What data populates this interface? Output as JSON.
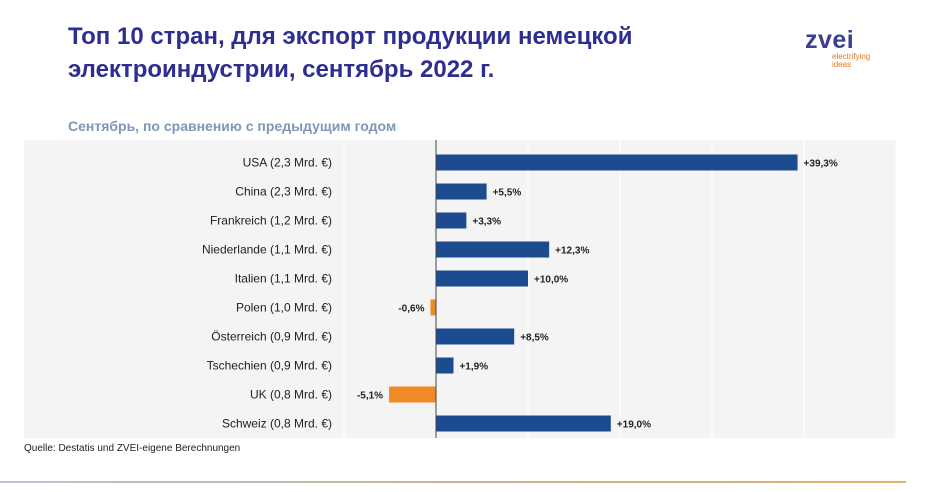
{
  "header": {
    "title": "Топ 10 стран, для экспорт продукции немецкой электроиндустрии, сентябрь 2022 г.",
    "logo_word": "zvei",
    "logo_tagline_1": "electrifying",
    "logo_tagline_2": "ideas"
  },
  "subtitle": "Сентябрь, по сравнению с предыдущим годом",
  "source": "Quelle: Destatis und ZVEI-eigene Berechnungen",
  "colors": {
    "positive": "#1d4b8f",
    "negative": "#ef8a25",
    "title": "#2d2e8f",
    "axis": "#444444",
    "grid": "#ffffff"
  },
  "chart_data": {
    "type": "bar",
    "orientation": "horizontal",
    "categories": [
      "USA (2,3 Mrd. €)",
      "China (2,3 Mrd. €)",
      "Frankreich (1,2 Mrd. €)",
      "Niederlande (1,1 Mrd. €)",
      "Italien (1,1 Mrd. €)",
      "Polen (1,0 Mrd. €)",
      "Österreich (0,9 Mrd. €)",
      "Tschechien (0,9 Mrd. €)",
      "UK (0,8 Mrd. €)",
      "Schweiz (0,8 Mrd. €)"
    ],
    "values": [
      39.3,
      5.5,
      3.3,
      12.3,
      10.0,
      -0.6,
      8.5,
      1.9,
      -5.1,
      19.0
    ],
    "data_labels": [
      "+39,3%",
      "+5,5%",
      "+3,3%",
      "+12,3%",
      "+10,0%",
      "-0,6%",
      "+8,5%",
      "+1,9%",
      "-5,1%",
      "+19,0%"
    ],
    "xlim": [
      -10,
      50
    ],
    "grid": true,
    "legend": "none"
  }
}
